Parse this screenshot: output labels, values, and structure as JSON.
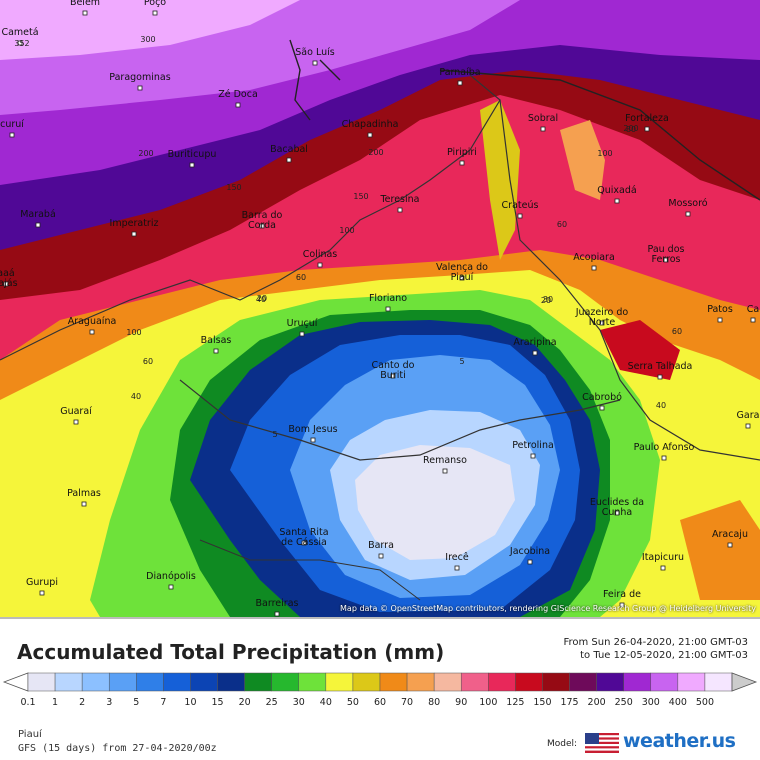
{
  "map": {
    "cities": [
      {
        "name": "Belém"
      },
      {
        "name": "Poço"
      },
      {
        "name": "Cametá"
      },
      {
        "name": "São Luís"
      },
      {
        "name": "Paragominas"
      },
      {
        "name": "Parnaíba"
      },
      {
        "name": "Zé Doca"
      },
      {
        "name": "Chapadinha"
      },
      {
        "name": "Sobral"
      },
      {
        "name": "Fortaleza"
      },
      {
        "name": "curuí"
      },
      {
        "name": "Buriticupu"
      },
      {
        "name": "Bacabal"
      },
      {
        "name": "Piripiri"
      },
      {
        "name": "Quixadá"
      },
      {
        "name": "Marabá"
      },
      {
        "name": "Imperatriz"
      },
      {
        "name": "Barra do Corda"
      },
      {
        "name": "Teresina"
      },
      {
        "name": "Crateús"
      },
      {
        "name": "Mossoró"
      },
      {
        "name": "Colinas"
      },
      {
        "name": "Acopiara"
      },
      {
        "name": "Pau dos Ferros"
      },
      {
        "name": "aaá rajás"
      },
      {
        "name": "Valença do Piauí"
      },
      {
        "name": "Floriano"
      },
      {
        "name": "Juazeiro do Norte"
      },
      {
        "name": "Patos"
      },
      {
        "name": "Ca"
      },
      {
        "name": "Araguaína"
      },
      {
        "name": "Uruçuí"
      },
      {
        "name": "Araripina"
      },
      {
        "name": "Balsas"
      },
      {
        "name": "Canto do Buriti"
      },
      {
        "name": "Serra Talhada"
      },
      {
        "name": "Guaraí"
      },
      {
        "name": "Cabrobó"
      },
      {
        "name": "Gara"
      },
      {
        "name": "Bom Jesus"
      },
      {
        "name": "Petrolina"
      },
      {
        "name": "Paulo Afonso"
      },
      {
        "name": "Remanso"
      },
      {
        "name": "Palmas"
      },
      {
        "name": "Euclides da Cunha"
      },
      {
        "name": "Santa Rita de Cássia"
      },
      {
        "name": "Aracaju"
      },
      {
        "name": "Barra"
      },
      {
        "name": "Irecê"
      },
      {
        "name": "Jacobina"
      },
      {
        "name": "Itapicuru"
      },
      {
        "name": "Gurupi"
      },
      {
        "name": "Dianópolis"
      },
      {
        "name": "Feira de"
      },
      {
        "name": "Barreiras"
      }
    ],
    "contour_labels": [
      "352",
      "300",
      "200",
      "200",
      "200",
      "150",
      "150",
      "100",
      "100",
      "100",
      "80",
      "60",
      "60",
      "60",
      "60",
      "40",
      "40",
      "40",
      "30",
      "20",
      "20",
      "5",
      "5"
    ],
    "attribution": "Map data © OpenStreetMap contributors, rendering GIScience Research Group @ Heidelberg University"
  },
  "legend": {
    "title": "Accumulated Total Precipitation (mm)",
    "period_from": "From Sun 26-04-2020, 21:00 GMT-03",
    "period_to": "to Tue 12-05-2020, 21:00 GMT-03",
    "scale": [
      {
        "value": "0.1",
        "color": "#e6e6f5"
      },
      {
        "value": "1",
        "color": "#b8d6ff"
      },
      {
        "value": "2",
        "color": "#8cc0ff"
      },
      {
        "value": "3",
        "color": "#5aa0f5"
      },
      {
        "value": "5",
        "color": "#2f7fe8"
      },
      {
        "value": "7",
        "color": "#1560d8"
      },
      {
        "value": "10",
        "color": "#0c44b4"
      },
      {
        "value": "15",
        "color": "#0a2f8a"
      },
      {
        "value": "20",
        "color": "#0f8a22"
      },
      {
        "value": "25",
        "color": "#26b82e"
      },
      {
        "value": "30",
        "color": "#6ee23a"
      },
      {
        "value": "40",
        "color": "#f5f53a"
      },
      {
        "value": "50",
        "color": "#dcc818"
      },
      {
        "value": "60",
        "color": "#f08a18"
      },
      {
        "value": "70",
        "color": "#f5a050"
      },
      {
        "value": "80",
        "color": "#f5b8a0"
      },
      {
        "value": "90",
        "color": "#f0608a"
      },
      {
        "value": "100",
        "color": "#e8285a"
      },
      {
        "value": "125",
        "color": "#c80a1e"
      },
      {
        "value": "150",
        "color": "#960a14"
      },
      {
        "value": "175",
        "color": "#6e0a5a"
      },
      {
        "value": "200",
        "color": "#500896"
      },
      {
        "value": "250",
        "color": "#a028d2"
      },
      {
        "value": "300",
        "color": "#c864f0"
      },
      {
        "value": "400",
        "color": "#f0aaff"
      },
      {
        "value": "500",
        "color": "#f5e6ff"
      }
    ],
    "above_color": "#cccccc",
    "below_color": "#ffffff",
    "region": "Piauí",
    "model_run": "GFS (15 days) from  27-04-2020/00z",
    "model_label": "Model:",
    "brand": "weather.us"
  }
}
